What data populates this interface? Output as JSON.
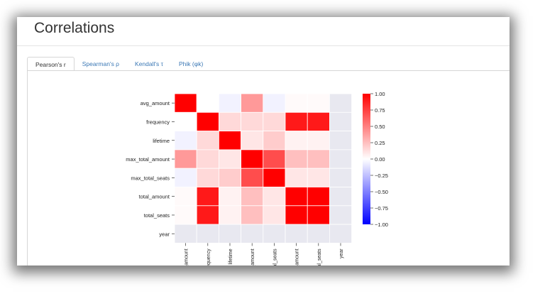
{
  "page": {
    "title": "Correlations"
  },
  "tabs": [
    {
      "label": "Pearson's r",
      "active": true
    },
    {
      "label": "Spearman's ρ",
      "active": false
    },
    {
      "label": "Kendall's τ",
      "active": false
    },
    {
      "label": "Phik (φk)",
      "active": false
    }
  ],
  "chart_data": {
    "type": "heatmap",
    "rows": [
      "avg_amount",
      "frequency",
      "lifetime",
      "max_total_amount",
      "max_total_seats",
      "total_amount",
      "total_seats",
      "year"
    ],
    "columns": [
      "avg_amount",
      "frequency",
      "lifetime",
      "max_total_amount",
      "max_total_seats",
      "total_amount",
      "total_seats",
      "year"
    ],
    "values": [
      [
        1.0,
        0.0,
        -0.05,
        0.4,
        -0.05,
        0.02,
        0.02,
        null
      ],
      [
        0.0,
        1.0,
        0.15,
        0.15,
        0.15,
        0.9,
        0.9,
        null
      ],
      [
        -0.05,
        0.15,
        1.0,
        0.1,
        0.2,
        0.05,
        0.05,
        null
      ],
      [
        0.4,
        0.15,
        0.1,
        1.0,
        0.7,
        0.25,
        0.25,
        null
      ],
      [
        -0.05,
        0.15,
        0.2,
        0.7,
        1.0,
        0.1,
        0.1,
        null
      ],
      [
        0.02,
        0.9,
        0.05,
        0.25,
        0.1,
        1.0,
        1.0,
        null
      ],
      [
        0.02,
        0.9,
        0.05,
        0.25,
        0.1,
        1.0,
        1.0,
        null
      ],
      [
        null,
        null,
        null,
        null,
        null,
        null,
        null,
        null
      ]
    ],
    "vmin": -1.0,
    "vmax": 1.0,
    "colorbar_ticks": [
      "1.00",
      "0.75",
      "0.50",
      "0.25",
      "0.00",
      "−0.25",
      "−0.50",
      "−0.75",
      "−1.00"
    ],
    "colormap": "bwr",
    "missing_color": "#e8e8f0",
    "grid_color": "#ffffff"
  }
}
